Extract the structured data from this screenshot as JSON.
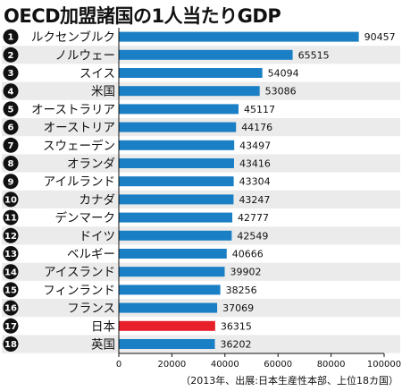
{
  "chart_data": {
    "type": "bar",
    "orientation": "horizontal",
    "title": "OECD加盟諸国の1人当たりGDP",
    "ranks": [
      "1",
      "2",
      "3",
      "4",
      "5",
      "6",
      "7",
      "8",
      "9",
      "10",
      "11",
      "12",
      "13",
      "14",
      "15",
      "16",
      "17",
      "18"
    ],
    "categories": [
      "ルクセンブルク",
      "ノルウェー",
      "スイス",
      "米国",
      "オーストラリア",
      "オーストリア",
      "スウェーデン",
      "オランダ",
      "アイルランド",
      "カナダ",
      "デンマーク",
      "ドイツ",
      "ベルギー",
      "アイスランド",
      "フィンランド",
      "フランス",
      "日本",
      "英国"
    ],
    "values": [
      90457,
      65515,
      54094,
      53086,
      45117,
      44176,
      43497,
      43416,
      43304,
      43247,
      42777,
      42549,
      40666,
      39902,
      38256,
      37069,
      36315,
      36202
    ],
    "value_labels": [
      "90457",
      "65515",
      "54094",
      "53086",
      "45117",
      "44176",
      "43497",
      "43416",
      "43304",
      "43247",
      "42777",
      "42549",
      "40666",
      "39902",
      "38256",
      "37069",
      "36315",
      "36202"
    ],
    "highlight_category": "日本",
    "xlim": [
      0,
      100000
    ],
    "xticks": [
      0,
      20000,
      40000,
      60000,
      80000,
      100000
    ],
    "xtick_labels": [
      "0",
      "20000",
      "40000",
      "60000",
      "80000",
      "100000"
    ],
    "x_unit": "ドル",
    "grid": false,
    "colors": {
      "bar": "#1a7fc4",
      "highlight_bar": "#e8202a",
      "rank_circle": "#111111",
      "row_stripe": "#ebebeb"
    }
  },
  "source_note": "（2013年、出展:日本生産性本部、上位18カ国）"
}
